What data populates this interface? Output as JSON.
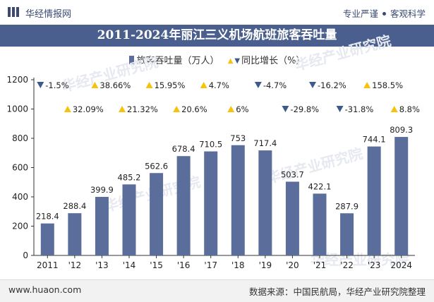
{
  "header": {
    "brand_name": "华经情报网",
    "slogan_part1": "专业严谨",
    "slogan_part2": "客观科学"
  },
  "watermark": "华经产业研究院",
  "footer": {
    "website": "www.huaon.com",
    "source": "数据来源：中国民航局，华经产业研究院整理"
  },
  "colors": {
    "bar": "#5b6d9b",
    "up": "#f5c20c",
    "down": "#3d5a8a",
    "title_bg": "#4a5f8e"
  },
  "chart_data": {
    "type": "bar",
    "title": "2011-2024年丽江三义机场航班旅客吞吐量",
    "categories": [
      "2011",
      "'12",
      "'13",
      "'14",
      "'15",
      "'16",
      "'17",
      "'18",
      "'19",
      "'20",
      "'21",
      "'22",
      "'23",
      "2024"
    ],
    "series": [
      {
        "name": "旅客吞吐量（万人）",
        "type": "bar",
        "values": [
          218.4,
          288.4,
          399.9,
          485.2,
          562.6,
          678.4,
          710.5,
          753,
          717.4,
          503.7,
          422.1,
          287.9,
          744.1,
          809.3
        ],
        "labels": [
          "218.4",
          "288.4",
          "399.9",
          "485.2",
          "562.6",
          "678.4",
          "710.5",
          "753",
          "717.4",
          "503.7",
          "422.1",
          "287.9",
          "744.1",
          "809.3"
        ]
      },
      {
        "name": "同比增长（%）",
        "type": "annotation",
        "values": [
          -1.5,
          32.09,
          38.66,
          21.32,
          15.95,
          20.6,
          4.7,
          6,
          -4.7,
          -29.8,
          -16.2,
          -31.8,
          158.5,
          8.8
        ],
        "labels": [
          "-1.5%",
          "32.09%",
          "38.66%",
          "21.32%",
          "15.95%",
          "20.6%",
          "4.7%",
          "6%",
          "-4.7%",
          "-29.8%",
          "-16.2%",
          "-31.8%",
          "158.5%",
          "8.8%"
        ]
      }
    ],
    "yticks": [
      "0",
      "200",
      "400",
      "600",
      "800",
      "1000",
      "1200"
    ],
    "ylim": [
      0,
      1200
    ],
    "grid": false,
    "legend": "top-center"
  }
}
